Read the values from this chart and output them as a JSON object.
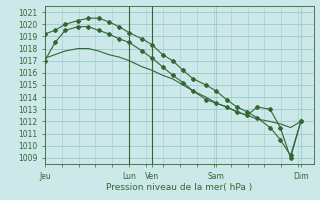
{
  "title": "Pression niveau de la mer( hPa )",
  "bg_color": "#cce8e8",
  "grid_color": "#99cccc",
  "line_color": "#336633",
  "marker_color": "#336633",
  "ylim": [
    1008.5,
    1021.5
  ],
  "yticks": [
    1009,
    1010,
    1011,
    1012,
    1013,
    1014,
    1015,
    1016,
    1017,
    1018,
    1019,
    1020,
    1021
  ],
  "xtick_labels": [
    "Jeu",
    "Lun",
    "Ven",
    "Sam",
    "Dim"
  ],
  "xtick_positions": [
    0,
    0.33,
    0.42,
    0.67,
    1.0
  ],
  "xlim_days": [
    0,
    1.05
  ],
  "series": [
    {
      "x": [
        0.0,
        0.04,
        0.08,
        0.13,
        0.17,
        0.21,
        0.25,
        0.29,
        0.33,
        0.38,
        0.42,
        0.46,
        0.5,
        0.54,
        0.58,
        0.63,
        0.67,
        0.71,
        0.75,
        0.79,
        0.83,
        0.88,
        0.92,
        0.96,
        1.0
      ],
      "y": [
        1017.2,
        1017.5,
        1017.8,
        1018.0,
        1018.0,
        1017.8,
        1017.5,
        1017.3,
        1017.0,
        1016.5,
        1016.2,
        1015.8,
        1015.5,
        1015.0,
        1014.5,
        1014.0,
        1013.5,
        1013.2,
        1012.8,
        1012.5,
        1012.2,
        1012.0,
        1011.8,
        1011.5,
        1012.0
      ],
      "marker": false
    },
    {
      "x": [
        0.0,
        0.04,
        0.08,
        0.13,
        0.17,
        0.21,
        0.25,
        0.29,
        0.33,
        0.38,
        0.42,
        0.46,
        0.5,
        0.54,
        0.58,
        0.63,
        0.67,
        0.71,
        0.75,
        0.79,
        0.83,
        0.88,
        0.92,
        0.96,
        1.0
      ],
      "y": [
        1019.2,
        1019.5,
        1020.0,
        1020.3,
        1020.5,
        1020.5,
        1020.2,
        1019.8,
        1019.3,
        1018.8,
        1018.3,
        1017.5,
        1017.0,
        1016.2,
        1015.5,
        1015.0,
        1014.5,
        1013.8,
        1013.2,
        1012.8,
        1012.3,
        1011.5,
        1010.5,
        1009.2,
        1012.0
      ],
      "marker": true
    },
    {
      "x": [
        0.0,
        0.04,
        0.08,
        0.13,
        0.17,
        0.21,
        0.25,
        0.29,
        0.33,
        0.38,
        0.42,
        0.46,
        0.5,
        0.54,
        0.58,
        0.63,
        0.67,
        0.71,
        0.75,
        0.79,
        0.83,
        0.88,
        0.92,
        0.96,
        1.0
      ],
      "y": [
        1017.0,
        1018.5,
        1019.5,
        1019.8,
        1019.8,
        1019.5,
        1019.2,
        1018.8,
        1018.5,
        1017.8,
        1017.2,
        1016.5,
        1015.8,
        1015.2,
        1014.5,
        1013.8,
        1013.5,
        1013.2,
        1012.8,
        1012.5,
        1013.2,
        1013.0,
        1011.5,
        1009.0,
        1012.0
      ],
      "marker": true
    }
  ],
  "vlines_x": [
    0.33,
    0.42
  ],
  "vline_color": "#336633",
  "ylabel_fontsize": 5.5,
  "xlabel_fontsize": 6.5,
  "tick_label_fontsize": 5.5
}
